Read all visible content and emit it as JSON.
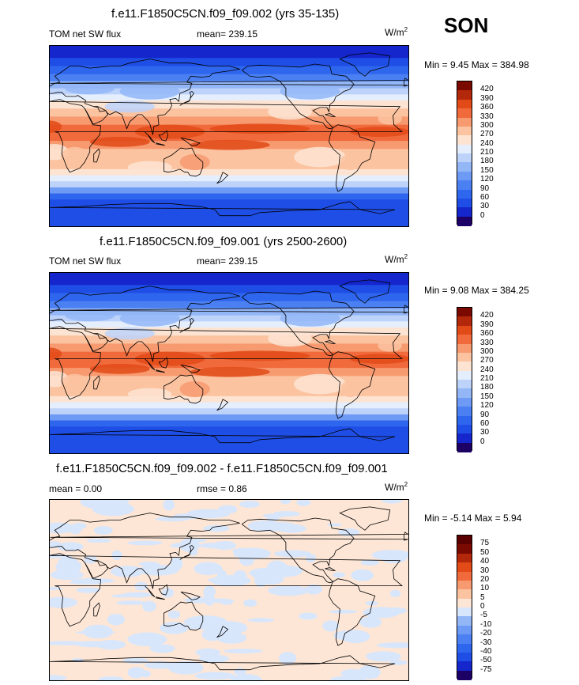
{
  "season": "SON",
  "units": "W/m",
  "units_sup": "2",
  "panels": [
    {
      "title": "f.e11.F1850C5CN.f09_f09.002 (yrs 35-135)",
      "left_label": "TOM net SW flux",
      "center_label": "mean= 239.15",
      "minmax": "Min =   9.45 Max = 384.98",
      "colorbar_ticks": [
        "420",
        "390",
        "360",
        "330",
        "300",
        "270",
        "240",
        "210",
        "180",
        "150",
        "120",
        "90",
        "60",
        "30",
        "0"
      ]
    },
    {
      "title": "f.e11.F1850C5CN.f09_f09.001 (yrs 2500-2600)",
      "left_label": "TOM net SW flux",
      "center_label": "mean= 239.15",
      "minmax": "Min =   9.08 Max = 384.25",
      "colorbar_ticks": [
        "420",
        "390",
        "360",
        "330",
        "300",
        "270",
        "240",
        "210",
        "180",
        "150",
        "120",
        "90",
        "60",
        "30",
        "0"
      ]
    },
    {
      "title": "f.e11.F1850C5CN.f09_f09.002 - f.e11.F1850C5CN.f09_f09.001",
      "left_label": "mean =   0.00",
      "center_label": "rmse =   0.86",
      "minmax": "Min =  -5.14 Max =   5.94",
      "colorbar_ticks": [
        "75",
        "50",
        "40",
        "30",
        "20",
        "10",
        "5",
        "0",
        "-5",
        "-10",
        "-20",
        "-30",
        "-40",
        "-50",
        "-75"
      ]
    }
  ],
  "chart_data": [
    {
      "type": "heatmap",
      "title": "f.e11.F1850C5CN.f09_f09.002 (yrs 35-135)",
      "variable": "TOM net SW flux",
      "units": "W/m2",
      "mean": 239.15,
      "min": 9.45,
      "max": 384.98,
      "levels": [
        0,
        30,
        60,
        90,
        120,
        150,
        180,
        210,
        240,
        270,
        300,
        330,
        360,
        390,
        420
      ],
      "colors": [
        "#1d0066",
        "#1426cc",
        "#1f4ee6",
        "#2f66ee",
        "#4b80f2",
        "#6d9af5",
        "#93b6f7",
        "#bdd3fa",
        "#e4eefd",
        "#fde4d2",
        "#fbc3a0",
        "#f79a70",
        "#f06a3c",
        "#e24a18",
        "#b3270a",
        "#7a0a00"
      ],
      "zonal_profile_by_latitude": [
        [
          90,
          20
        ],
        [
          75,
          40
        ],
        [
          60,
          90
        ],
        [
          45,
          150
        ],
        [
          30,
          270
        ],
        [
          15,
          330
        ],
        [
          0,
          345
        ],
        [
          -15,
          315
        ],
        [
          -30,
          290
        ],
        [
          -45,
          200
        ],
        [
          -60,
          105
        ],
        [
          -75,
          55
        ],
        [
          -90,
          30
        ]
      ]
    },
    {
      "type": "heatmap",
      "title": "f.e11.F1850C5CN.f09_f09.001 (yrs 2500-2600)",
      "variable": "TOM net SW flux",
      "units": "W/m2",
      "mean": 239.15,
      "min": 9.08,
      "max": 384.25,
      "levels": [
        0,
        30,
        60,
        90,
        120,
        150,
        180,
        210,
        240,
        270,
        300,
        330,
        360,
        390,
        420
      ],
      "colors": [
        "#1d0066",
        "#1426cc",
        "#1f4ee6",
        "#2f66ee",
        "#4b80f2",
        "#6d9af5",
        "#93b6f7",
        "#bdd3fa",
        "#e4eefd",
        "#fde4d2",
        "#fbc3a0",
        "#f79a70",
        "#f06a3c",
        "#e24a18",
        "#b3270a",
        "#7a0a00"
      ],
      "zonal_profile_by_latitude": [
        [
          90,
          20
        ],
        [
          75,
          40
        ],
        [
          60,
          90
        ],
        [
          45,
          150
        ],
        [
          30,
          270
        ],
        [
          15,
          330
        ],
        [
          0,
          345
        ],
        [
          -15,
          315
        ],
        [
          -30,
          290
        ],
        [
          -45,
          200
        ],
        [
          -60,
          105
        ],
        [
          -75,
          55
        ],
        [
          -90,
          30
        ]
      ]
    },
    {
      "type": "heatmap",
      "title": "f.e11.F1850C5CN.f09_f09.002 - f.e11.F1850C5CN.f09_f09.001",
      "units": "W/m2",
      "mean": 0.0,
      "rmse": 0.86,
      "min": -5.14,
      "max": 5.94,
      "levels": [
        -75,
        -50,
        -40,
        -30,
        -20,
        -10,
        -5,
        0,
        5,
        10,
        20,
        30,
        40,
        50,
        75
      ],
      "colors": [
        "#1d0066",
        "#1426cc",
        "#1f4ee6",
        "#2f66ee",
        "#4b80f2",
        "#6d9af5",
        "#93b6f7",
        "#d8e6fb",
        "#fde6d6",
        "#fbc3a0",
        "#f79a70",
        "#f06a3c",
        "#e24a18",
        "#b3270a",
        "#7a0a00",
        "#5a0000"
      ],
      "dominant_bins": [
        "-5 to 0",
        "0 to 5"
      ]
    }
  ]
}
